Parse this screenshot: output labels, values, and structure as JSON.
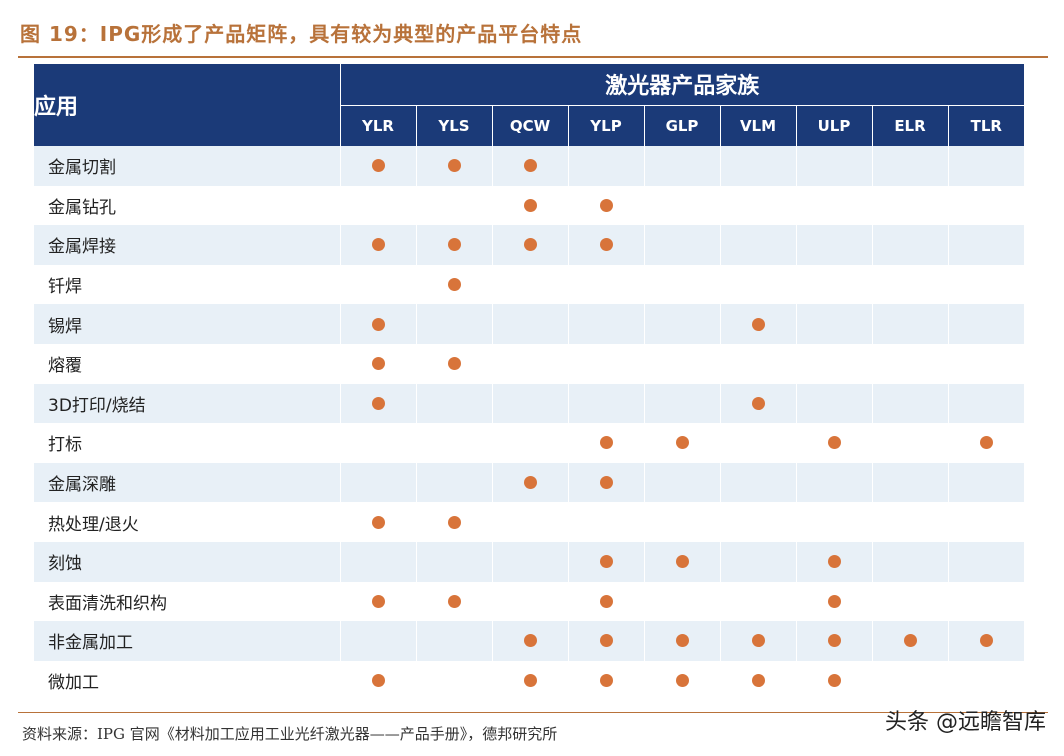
{
  "title": "图 19：IPG形成了产品矩阵，具有较为典型的产品平台特点",
  "table": {
    "app_header": "应用",
    "family_header": "激光器产品家族",
    "columns": [
      "YLR",
      "YLS",
      "QCW",
      "YLP",
      "GLP",
      "VLM",
      "ULP",
      "ELR",
      "TLR"
    ],
    "rows": [
      {
        "label": "金属切割",
        "marks": [
          1,
          1,
          1,
          0,
          0,
          0,
          0,
          0,
          0
        ]
      },
      {
        "label": "金属钻孔",
        "marks": [
          0,
          0,
          1,
          1,
          0,
          0,
          0,
          0,
          0
        ]
      },
      {
        "label": "金属焊接",
        "marks": [
          1,
          1,
          1,
          1,
          0,
          0,
          0,
          0,
          0
        ]
      },
      {
        "label": "钎焊",
        "marks": [
          0,
          1,
          0,
          0,
          0,
          0,
          0,
          0,
          0
        ]
      },
      {
        "label": "锡焊",
        "marks": [
          1,
          0,
          0,
          0,
          0,
          1,
          0,
          0,
          0
        ]
      },
      {
        "label": "熔覆",
        "marks": [
          1,
          1,
          0,
          0,
          0,
          0,
          0,
          0,
          0
        ]
      },
      {
        "label": "3D打印/烧结",
        "marks": [
          1,
          0,
          0,
          0,
          0,
          1,
          0,
          0,
          0
        ]
      },
      {
        "label": "打标",
        "marks": [
          0,
          0,
          0,
          1,
          1,
          0,
          1,
          0,
          1
        ]
      },
      {
        "label": "金属深雕",
        "marks": [
          0,
          0,
          1,
          1,
          0,
          0,
          0,
          0,
          0
        ]
      },
      {
        "label": "热处理/退火",
        "marks": [
          1,
          1,
          0,
          0,
          0,
          0,
          0,
          0,
          0
        ]
      },
      {
        "label": "刻蚀",
        "marks": [
          0,
          0,
          0,
          1,
          1,
          0,
          1,
          0,
          0
        ]
      },
      {
        "label": "表面清洗和织构",
        "marks": [
          1,
          1,
          0,
          1,
          0,
          0,
          1,
          0,
          0
        ]
      },
      {
        "label": "非金属加工",
        "marks": [
          0,
          0,
          1,
          1,
          1,
          1,
          1,
          1,
          1
        ]
      },
      {
        "label": "微加工",
        "marks": [
          1,
          0,
          1,
          1,
          1,
          1,
          1,
          0,
          0
        ]
      }
    ]
  },
  "source": "资料来源：IPG 官网《材料加工应用工业光纤激光器——产品手册》，德邦研究所",
  "watermark": "头条 @远瞻智库",
  "colors": {
    "header": "#1b3a78",
    "dot": "#d8743a",
    "title": "#b8723a",
    "stripe": "#e8f0f7"
  }
}
